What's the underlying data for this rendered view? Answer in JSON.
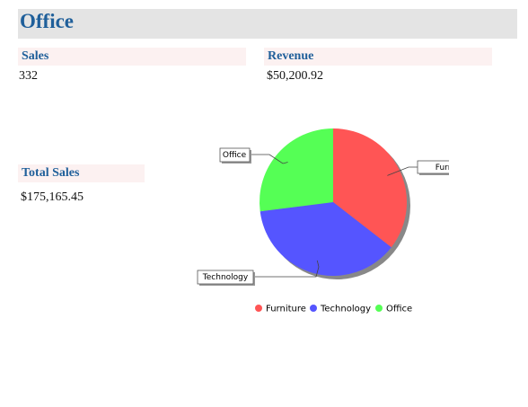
{
  "header": {
    "title": "Office"
  },
  "kpis": {
    "sales": {
      "label": "Sales",
      "value": "332"
    },
    "revenue": {
      "label": "Revenue",
      "value": "$50,200.92"
    },
    "total_sales": {
      "label": "Total Sales",
      "value": "$175,165.45"
    }
  },
  "chart_data": {
    "type": "pie",
    "slices": [
      {
        "label": "Furniture",
        "value": 35.5,
        "color": "#ff5555"
      },
      {
        "label": "Technology",
        "value": 37.5,
        "color": "#5555ff"
      },
      {
        "label": "Office",
        "value": 27.0,
        "color": "#55ff55"
      }
    ],
    "legend": [
      "Furniture",
      "Technology",
      "Office"
    ],
    "legend_position": "bottom"
  }
}
